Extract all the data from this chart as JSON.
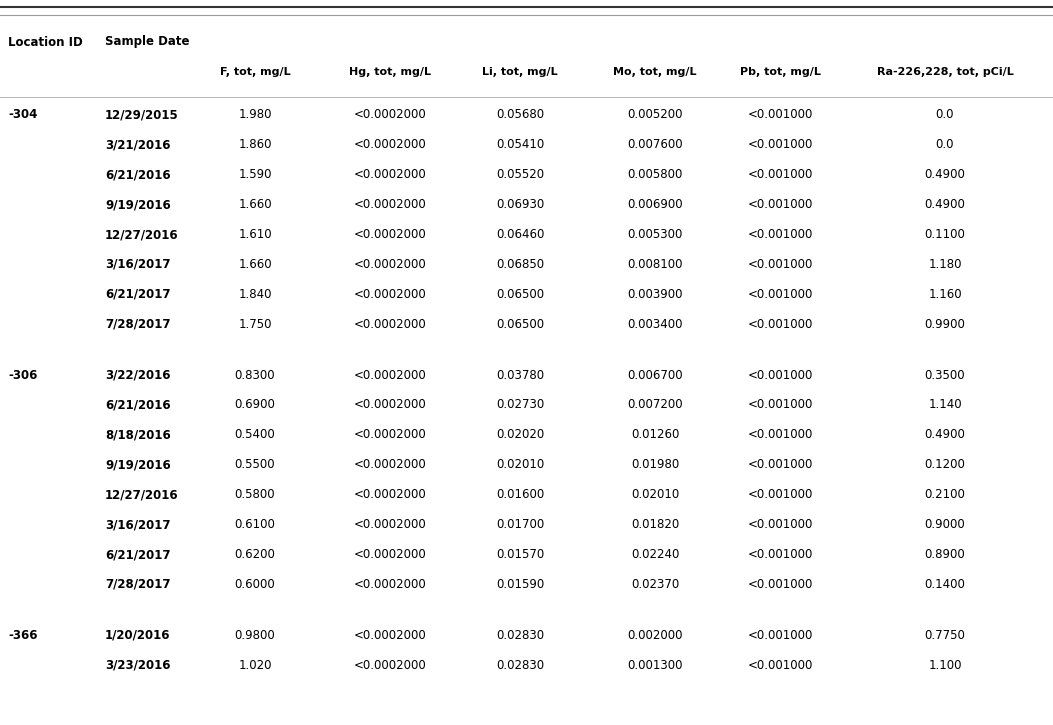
{
  "col_headers": [
    "F, tot, mg/L",
    "Hg, tot, mg/L",
    "Li, tot, mg/L",
    "Mo, tot, mg/L",
    "Pb, tot, mg/L",
    "Ra-226,228, tot, pCi/L"
  ],
  "row_header1": "Location ID",
  "row_header2": "Sample Date",
  "rows": [
    {
      "loc": "-304",
      "date": "12/29/2015",
      "f": "1.980",
      "hg": "<0.0002000",
      "li": "0.05680",
      "mo": "0.005200",
      "pb": "<0.001000",
      "ra": "0.0"
    },
    {
      "loc": "",
      "date": "3/21/2016",
      "f": "1.860",
      "hg": "<0.0002000",
      "li": "0.05410",
      "mo": "0.007600",
      "pb": "<0.001000",
      "ra": "0.0"
    },
    {
      "loc": "",
      "date": "6/21/2016",
      "f": "1.590",
      "hg": "<0.0002000",
      "li": "0.05520",
      "mo": "0.005800",
      "pb": "<0.001000",
      "ra": "0.4900"
    },
    {
      "loc": "",
      "date": "9/19/2016",
      "f": "1.660",
      "hg": "<0.0002000",
      "li": "0.06930",
      "mo": "0.006900",
      "pb": "<0.001000",
      "ra": "0.4900"
    },
    {
      "loc": "",
      "date": "12/27/2016",
      "f": "1.610",
      "hg": "<0.0002000",
      "li": "0.06460",
      "mo": "0.005300",
      "pb": "<0.001000",
      "ra": "0.1100"
    },
    {
      "loc": "",
      "date": "3/16/2017",
      "f": "1.660",
      "hg": "<0.0002000",
      "li": "0.06850",
      "mo": "0.008100",
      "pb": "<0.001000",
      "ra": "1.180"
    },
    {
      "loc": "",
      "date": "6/21/2017",
      "f": "1.840",
      "hg": "<0.0002000",
      "li": "0.06500",
      "mo": "0.003900",
      "pb": "<0.001000",
      "ra": "1.160"
    },
    {
      "loc": "",
      "date": "7/28/2017",
      "f": "1.750",
      "hg": "<0.0002000",
      "li": "0.06500",
      "mo": "0.003400",
      "pb": "<0.001000",
      "ra": "0.9900"
    },
    {
      "loc": "-306",
      "date": "3/22/2016",
      "f": "0.8300",
      "hg": "<0.0002000",
      "li": "0.03780",
      "mo": "0.006700",
      "pb": "<0.001000",
      "ra": "0.3500"
    },
    {
      "loc": "",
      "date": "6/21/2016",
      "f": "0.6900",
      "hg": "<0.0002000",
      "li": "0.02730",
      "mo": "0.007200",
      "pb": "<0.001000",
      "ra": "1.140"
    },
    {
      "loc": "",
      "date": "8/18/2016",
      "f": "0.5400",
      "hg": "<0.0002000",
      "li": "0.02020",
      "mo": "0.01260",
      "pb": "<0.001000",
      "ra": "0.4900"
    },
    {
      "loc": "",
      "date": "9/19/2016",
      "f": "0.5500",
      "hg": "<0.0002000",
      "li": "0.02010",
      "mo": "0.01980",
      "pb": "<0.001000",
      "ra": "0.1200"
    },
    {
      "loc": "",
      "date": "12/27/2016",
      "f": "0.5800",
      "hg": "<0.0002000",
      "li": "0.01600",
      "mo": "0.02010",
      "pb": "<0.001000",
      "ra": "0.2100"
    },
    {
      "loc": "",
      "date": "3/16/2017",
      "f": "0.6100",
      "hg": "<0.0002000",
      "li": "0.01700",
      "mo": "0.01820",
      "pb": "<0.001000",
      "ra": "0.9000"
    },
    {
      "loc": "",
      "date": "6/21/2017",
      "f": "0.6200",
      "hg": "<0.0002000",
      "li": "0.01570",
      "mo": "0.02240",
      "pb": "<0.001000",
      "ra": "0.8900"
    },
    {
      "loc": "",
      "date": "7/28/2017",
      "f": "0.6000",
      "hg": "<0.0002000",
      "li": "0.01590",
      "mo": "0.02370",
      "pb": "<0.001000",
      "ra": "0.1400"
    },
    {
      "loc": "-366",
      "date": "1/20/2016",
      "f": "0.9800",
      "hg": "<0.0002000",
      "li": "0.02830",
      "mo": "0.002000",
      "pb": "<0.001000",
      "ra": "0.7750"
    },
    {
      "loc": "",
      "date": "3/23/2016",
      "f": "1.020",
      "hg": "<0.0002000",
      "li": "0.02830",
      "mo": "0.001300",
      "pb": "<0.001000",
      "ra": "1.100"
    }
  ],
  "bg_color": "#ffffff",
  "text_color": "#000000",
  "header_color": "#000000",
  "top_line_color": "#333333",
  "separator_color": "#999999",
  "font_size": 8.5,
  "header_font_size": 8.5,
  "col_header_font_size": 8.5
}
